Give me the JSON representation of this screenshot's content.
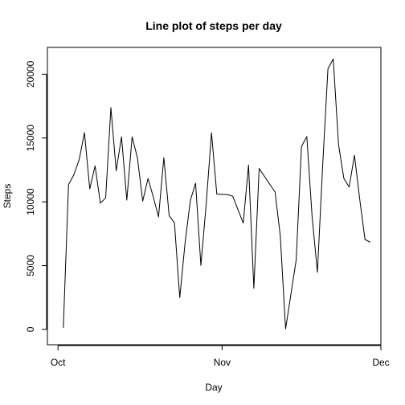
{
  "chart_data": {
    "type": "line",
    "title": "Line plot of steps per day",
    "xlabel": "Day",
    "ylabel": "Steps",
    "x_start": "2012-10-01",
    "x_ticks": [
      {
        "label": "Oct",
        "date": "2012-10-01"
      },
      {
        "label": "Nov",
        "date": "2012-11-01"
      },
      {
        "label": "Dec",
        "date": "2012-12-01"
      }
    ],
    "y_ticks": [
      0,
      5000,
      10000,
      15000,
      20000
    ],
    "xlim": [
      "2012-09-29",
      "2012-12-01"
    ],
    "ylim": [
      -1200,
      22100
    ],
    "grid": false,
    "series": [
      {
        "color": "#000000",
        "x": [
          "2012-10-02",
          "2012-10-03",
          "2012-10-04",
          "2012-10-05",
          "2012-10-06",
          "2012-10-07",
          "2012-10-08",
          "2012-10-09",
          "2012-10-10",
          "2012-10-11",
          "2012-10-12",
          "2012-10-13",
          "2012-10-14",
          "2012-10-15",
          "2012-10-16",
          "2012-10-17",
          "2012-10-18",
          "2012-10-19",
          "2012-10-20",
          "2012-10-21",
          "2012-10-22",
          "2012-10-23",
          "2012-10-24",
          "2012-10-25",
          "2012-10-26",
          "2012-10-27",
          "2012-10-28",
          "2012-10-29",
          "2012-10-30",
          "2012-10-31",
          "2012-11-02",
          "2012-11-03",
          "2012-11-05",
          "2012-11-06",
          "2012-11-07",
          "2012-11-08",
          "2012-11-11",
          "2012-11-12",
          "2012-11-13",
          "2012-11-15",
          "2012-11-16",
          "2012-11-17",
          "2012-11-18",
          "2012-11-19",
          "2012-11-20",
          "2012-11-21",
          "2012-11-22",
          "2012-11-23",
          "2012-11-24",
          "2012-11-25",
          "2012-11-26",
          "2012-11-27",
          "2012-11-28",
          "2012-11-29"
        ],
        "y": [
          126,
          11352,
          12116,
          13294,
          15420,
          11015,
          12811,
          9900,
          10304,
          17382,
          12426,
          15098,
          10139,
          15084,
          13452,
          10056,
          11829,
          10395,
          8821,
          13460,
          8918,
          8355,
          2492,
          6778,
          10119,
          11458,
          5018,
          9819,
          15414,
          10600,
          10571,
          10439,
          8334,
          12883,
          3219,
          12608,
          10765,
          7336,
          41,
          5441,
          14339,
          15110,
          8841,
          4472,
          12787,
          20427,
          21194,
          14478,
          11834,
          11162,
          13646,
          10183,
          7047,
          6836
        ]
      }
    ]
  }
}
